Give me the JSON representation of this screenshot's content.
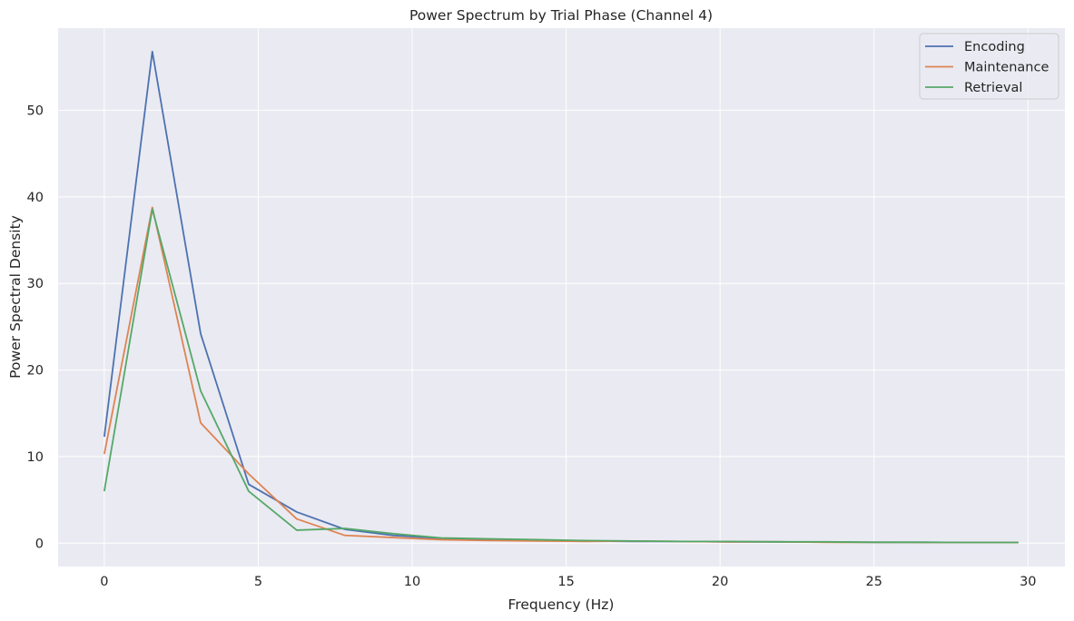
{
  "chart_data": {
    "type": "line",
    "title": "Power Spectrum by Trial Phase (Channel 4)",
    "xlabel": "Frequency (Hz)",
    "ylabel": "Power Spectral Density",
    "xlim": [
      -1.5,
      31.2
    ],
    "ylim": [
      -2.7,
      59.5
    ],
    "xticks": [
      0,
      5,
      10,
      15,
      20,
      25,
      30
    ],
    "yticks": [
      0,
      10,
      20,
      30,
      40,
      50
    ],
    "grid": true,
    "legend_position": "top-right",
    "x": [
      0,
      1.56,
      3.13,
      4.69,
      6.25,
      7.81,
      9.38,
      10.94,
      12.5,
      14.06,
      15.63,
      17.19,
      18.75,
      20.31,
      21.88,
      23.44,
      25.0,
      26.56,
      28.13,
      29.69
    ],
    "series": [
      {
        "name": "Encoding",
        "color": "#4c72b0",
        "values": [
          12.3,
          56.8,
          24.2,
          6.8,
          3.6,
          1.6,
          0.9,
          0.55,
          0.45,
          0.35,
          0.25,
          0.2,
          0.2,
          0.15,
          0.15,
          0.12,
          0.1,
          0.1,
          0.08,
          0.08
        ]
      },
      {
        "name": "Maintenance",
        "color": "#dd8452",
        "values": [
          10.3,
          38.8,
          13.9,
          8.0,
          2.8,
          0.9,
          0.65,
          0.4,
          0.3,
          0.25,
          0.2,
          0.25,
          0.2,
          0.15,
          0.15,
          0.1,
          0.1,
          0.08,
          0.08,
          0.08
        ]
      },
      {
        "name": "Retrieval",
        "color": "#55a868",
        "values": [
          6.0,
          38.6,
          17.6,
          6.0,
          1.5,
          1.7,
          1.1,
          0.6,
          0.5,
          0.4,
          0.3,
          0.25,
          0.2,
          0.2,
          0.15,
          0.15,
          0.1,
          0.1,
          0.08,
          0.08
        ]
      }
    ]
  }
}
